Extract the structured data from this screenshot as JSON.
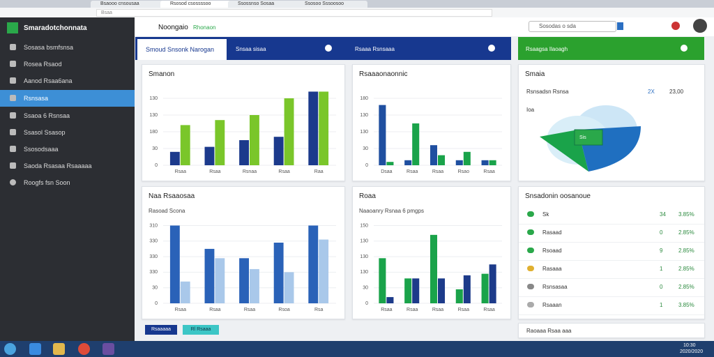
{
  "browser": {
    "tabs": [
      "Bsaooo cnsousaa",
      "Rsosod csossssoo",
      "Ssossnso Sosaa",
      "Ssosoo Sssoosoo"
    ],
    "address": "Bsaa"
  },
  "sidebar": {
    "title": "Smaradotchonnata",
    "items": [
      "Sosasa bsmfsnsa",
      "Rosea Rsaod",
      "Aanod Rsaa6ana",
      "Rsnsasa",
      "Ssaoa 6 Rsnsaa",
      "Ssasol Ssasop",
      "Ssosodsaaa",
      "Saoda Rsasaa Rsaaaaa",
      "Roogfs fsn Soon"
    ]
  },
  "header": {
    "title": "Noongaio",
    "tag": "Rhonaon",
    "search": "Sosodas o sda"
  },
  "tabs": {
    "items": [
      "Smoud Snsonk Narogan",
      "Snsaa sisaa",
      "Rsaaa Rsnsaaa"
    ],
    "green": "Rsaagsa Ilaoagh"
  },
  "cards": [
    {
      "title": "Smanon",
      "chart": {
        "type": "bar",
        "ylim": [
          0,
          4.5
        ],
        "yticks": [
          {
            "value": 0,
            "label": "0"
          },
          {
            "value": 1,
            "label": "30"
          },
          {
            "value": 2,
            "label": "180"
          },
          {
            "value": 3,
            "label": "130"
          },
          {
            "value": 4,
            "label": "130"
          }
        ],
        "categories": [
          "Rsaa",
          "Rsaa",
          "Rsnaa",
          "Rsaa",
          "Raa"
        ],
        "series": [
          {
            "color": "#1c3a8c",
            "values": [
              0.8,
              1.1,
              1.5,
              1.7,
              4.4
            ]
          },
          {
            "color": "#7ac62a",
            "values": [
              2.4,
              2.7,
              3.0,
              4.0,
              4.4
            ]
          }
        ]
      }
    },
    {
      "title": "Rsaaaonaonnic",
      "chart": {
        "type": "bar",
        "ylim": [
          0,
          4.5
        ],
        "yticks": [
          {
            "value": 0,
            "label": "0"
          },
          {
            "value": 1,
            "label": "30"
          },
          {
            "value": 2,
            "label": "130"
          },
          {
            "value": 3,
            "label": "130"
          },
          {
            "value": 4,
            "label": "180"
          }
        ],
        "categories": [
          "Dsaa",
          "Rsaa",
          "Rsaa",
          "Rsao",
          "Rsaa"
        ],
        "series": [
          {
            "color": "#1f4fa0",
            "values": [
              3.6,
              0.3,
              1.2,
              0.3,
              0.3
            ]
          },
          {
            "color": "#1aa34a",
            "values": [
              0.2,
              2.5,
              0.6,
              0.8,
              0.3
            ]
          }
        ]
      }
    },
    {
      "title": "Smaia",
      "label": "Rsnsadsn Rsnsa",
      "count": "2X",
      "amount": "23,00",
      "note": "Ioa",
      "badge": "Sis"
    },
    {
      "title": "Naa Rsaaosaa",
      "subtitle": "Rasoad Scona",
      "chart": {
        "type": "bar",
        "ylim": [
          0,
          5.2
        ],
        "yticks": [
          {
            "value": 0,
            "label": "0"
          },
          {
            "value": 1,
            "label": "30"
          },
          {
            "value": 2,
            "label": "330"
          },
          {
            "value": 3,
            "label": "330"
          },
          {
            "value": 4,
            "label": "330"
          },
          {
            "value": 5,
            "label": "310"
          }
        ],
        "categories": [
          "Rsaa",
          "Rsaa",
          "Rsaa",
          "Rsoa",
          "Rsa"
        ],
        "series": [
          {
            "color": "#2a62b8",
            "values": [
              5.0,
              3.5,
              2.9,
              3.9,
              5.0
            ]
          },
          {
            "color": "#a9c8ea",
            "values": [
              1.4,
              2.9,
              2.2,
              2.0,
              4.1
            ]
          }
        ]
      }
    },
    {
      "title": "Roaa",
      "subtitle": "Naaoanry Rsnaa 6 pmgps",
      "chart": {
        "type": "bar",
        "ylim": [
          0,
          5.2
        ],
        "yticks": [
          {
            "value": 0,
            "label": "0"
          },
          {
            "value": 1,
            "label": "30"
          },
          {
            "value": 2,
            "label": "130"
          },
          {
            "value": 3,
            "label": "130"
          },
          {
            "value": 4,
            "label": "130"
          },
          {
            "value": 5,
            "label": "150"
          }
        ],
        "categories": [
          "Rsaa",
          "Rsaa",
          "Rsaa",
          "Rsaa",
          "Rsaa"
        ],
        "series": [
          {
            "color": "#1aa34a",
            "values": [
              2.9,
              1.6,
              4.4,
              0.9,
              1.9
            ]
          },
          {
            "color": "#1d3b8a",
            "values": [
              0.4,
              1.6,
              1.6,
              1.8,
              2.5
            ]
          }
        ]
      }
    },
    {
      "title": "Snsadonin oosanoue",
      "rows": [
        [
          "Sk",
          "34",
          "3.85%"
        ],
        [
          "Rasaad",
          "0",
          "2.85%"
        ],
        [
          "Rsoaad",
          "9",
          "2.85%"
        ],
        [
          "Rasaaa",
          "1",
          "2.85%"
        ],
        [
          "Rsnsasaa",
          "0",
          "2.85%"
        ],
        [
          "Rsaaan",
          "1",
          "3.85%"
        ]
      ]
    }
  ],
  "footer": {
    "buttons": [
      "Rsaaaaa",
      "Rl Rsaaa"
    ],
    "note": "Raoaaa Rsaa aaa"
  },
  "taskbar": {
    "time": "10:30",
    "date": "2020/2020"
  }
}
